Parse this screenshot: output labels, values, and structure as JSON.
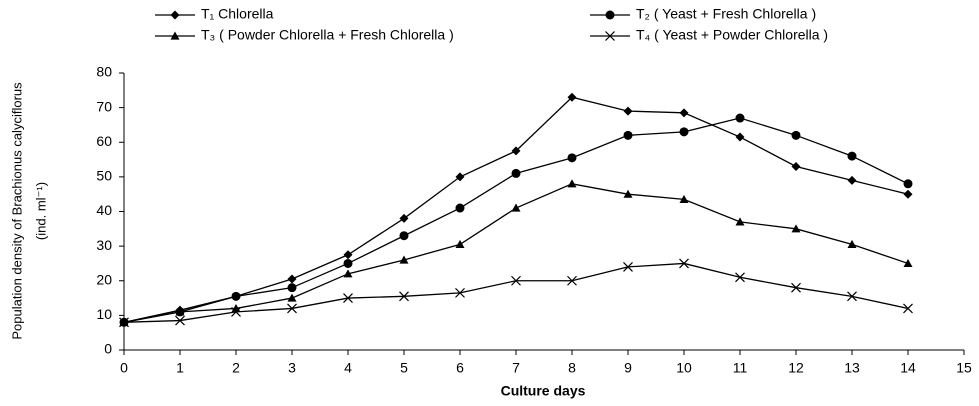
{
  "chart_data": {
    "type": "line",
    "x": [
      0,
      1,
      2,
      3,
      4,
      5,
      6,
      7,
      8,
      9,
      10,
      11,
      12,
      13,
      14
    ],
    "series": [
      {
        "name": "T₁ Chlorella",
        "color": "#000000",
        "marker": "diamond",
        "values": [
          8,
          11.5,
          15.5,
          20.5,
          27.5,
          38,
          50,
          57.5,
          73,
          69,
          68.5,
          61.5,
          53,
          49,
          45
        ]
      },
      {
        "name": "T₂ ( Yeast + Fresh Chlorella )",
        "color": "#000000",
        "marker": "circle",
        "values": [
          8,
          11,
          15.5,
          18,
          25,
          33,
          41,
          51,
          55.5,
          62,
          63,
          67,
          62,
          56,
          48
        ]
      },
      {
        "name": "T₃ ( Powder Chlorella +  Fresh Chlorella )",
        "color": "#000000",
        "marker": "triangle",
        "values": [
          8,
          11,
          12,
          15,
          22,
          26,
          30.5,
          41,
          48,
          45,
          43.5,
          37,
          35,
          30.5,
          25
        ]
      },
      {
        "name": "T₄ ( Yeast + Powder Chlorella )",
        "color": "#000000",
        "marker": "x",
        "values": [
          8,
          8.5,
          11,
          12,
          15,
          15.5,
          16.5,
          20,
          20,
          24,
          25,
          21,
          18,
          15.5,
          12
        ]
      }
    ],
    "xlabel": "Culture days",
    "ylabel": [
      "Population density of Brachionus calyciflorus",
      "(ind. ml⁻¹)"
    ],
    "xlim": [
      0,
      15
    ],
    "xticks": [
      0,
      1,
      2,
      3,
      4,
      5,
      6,
      7,
      8,
      9,
      10,
      11,
      12,
      13,
      14,
      15
    ],
    "ylim": [
      0,
      80
    ],
    "yticks": [
      0,
      10,
      20,
      30,
      40,
      50,
      60,
      70,
      80
    ],
    "grid": false,
    "legend": "top"
  }
}
